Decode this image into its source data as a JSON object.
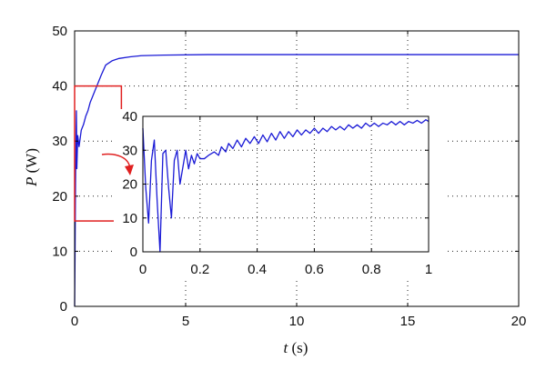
{
  "chart_data": [
    {
      "id": "main",
      "type": "line",
      "xlabel_var": "t",
      "xlabel_unit": " (s)",
      "ylabel_var": "P",
      "ylabel_unit": " (W)",
      "xlim": [
        0,
        20
      ],
      "ylim": [
        0,
        50
      ],
      "xticks": [
        0,
        5,
        10,
        15,
        20
      ],
      "yticks": [
        0,
        10,
        20,
        30,
        40,
        50
      ],
      "grid": true,
      "series": [
        {
          "color": "#1a1ad6",
          "points": [
            [
              0.0,
              0
            ],
            [
              0.02,
              10
            ],
            [
              0.04,
              22
            ],
            [
              0.06,
              30
            ],
            [
              0.08,
              35.5
            ],
            [
              0.1,
              25
            ],
            [
              0.14,
              31
            ],
            [
              0.2,
              29
            ],
            [
              0.3,
              32
            ],
            [
              0.4,
              33
            ],
            [
              0.5,
              34.5
            ],
            [
              0.6,
              35.5
            ],
            [
              0.7,
              37
            ],
            [
              0.8,
              38
            ],
            [
              0.9,
              39
            ],
            [
              1.0,
              40
            ],
            [
              1.2,
              42
            ],
            [
              1.4,
              43.8
            ],
            [
              1.7,
              44.6
            ],
            [
              2.0,
              45.0
            ],
            [
              2.5,
              45.3
            ],
            [
              3.0,
              45.5
            ],
            [
              4.0,
              45.6
            ],
            [
              6.0,
              45.7
            ],
            [
              10.0,
              45.7
            ],
            [
              15.0,
              45.7
            ],
            [
              20.0,
              45.7
            ]
          ]
        }
      ],
      "zoom_box": {
        "x0": 0,
        "x1": 1,
        "y0": 15.5,
        "y1": 40,
        "color": "#e02020"
      }
    },
    {
      "id": "inset",
      "type": "line",
      "xlim": [
        0,
        1
      ],
      "ylim": [
        0,
        40
      ],
      "xticks": [
        0,
        0.2,
        0.4,
        0.6,
        0.8,
        1
      ],
      "xtick_labels": [
        "0",
        "0.2",
        "0.4",
        "0.6",
        "0.8",
        "1"
      ],
      "yticks": [
        0,
        10,
        20,
        30,
        40
      ],
      "grid": true,
      "series": [
        {
          "color": "#1a1ad6",
          "points": [
            [
              0.0,
              36.5
            ],
            [
              0.01,
              19
            ],
            [
              0.02,
              8.5
            ],
            [
              0.03,
              27
            ],
            [
              0.04,
              33
            ],
            [
              0.05,
              15
            ],
            [
              0.06,
              0
            ],
            [
              0.07,
              29
            ],
            [
              0.08,
              30
            ],
            [
              0.09,
              19
            ],
            [
              0.1,
              10
            ],
            [
              0.11,
              27
            ],
            [
              0.12,
              30
            ],
            [
              0.13,
              20
            ],
            [
              0.14,
              25
            ],
            [
              0.15,
              30
            ],
            [
              0.16,
              24.5
            ],
            [
              0.17,
              28.5
            ],
            [
              0.18,
              26
            ],
            [
              0.19,
              29
            ],
            [
              0.2,
              27.5
            ],
            [
              0.215,
              27.5
            ],
            [
              0.23,
              28.5
            ],
            [
              0.25,
              29.5
            ],
            [
              0.265,
              28.5
            ],
            [
              0.275,
              31
            ],
            [
              0.29,
              29.5
            ],
            [
              0.3,
              32
            ],
            [
              0.315,
              30.5
            ],
            [
              0.33,
              33
            ],
            [
              0.345,
              31
            ],
            [
              0.36,
              33.5
            ],
            [
              0.375,
              32
            ],
            [
              0.39,
              34
            ],
            [
              0.405,
              32
            ],
            [
              0.42,
              34.5
            ],
            [
              0.435,
              32.5
            ],
            [
              0.45,
              35
            ],
            [
              0.465,
              33
            ],
            [
              0.48,
              35.5
            ],
            [
              0.495,
              33.5
            ],
            [
              0.51,
              35.5
            ],
            [
              0.525,
              34
            ],
            [
              0.54,
              36
            ],
            [
              0.555,
              34.5
            ],
            [
              0.57,
              36
            ],
            [
              0.585,
              35
            ],
            [
              0.6,
              36.5
            ],
            [
              0.615,
              35
            ],
            [
              0.63,
              36.5
            ],
            [
              0.645,
              35.5
            ],
            [
              0.66,
              37
            ],
            [
              0.675,
              36
            ],
            [
              0.69,
              37
            ],
            [
              0.705,
              36
            ],
            [
              0.72,
              37.5
            ],
            [
              0.735,
              36.5
            ],
            [
              0.75,
              37.5
            ],
            [
              0.765,
              36.5
            ],
            [
              0.78,
              38
            ],
            [
              0.795,
              37
            ],
            [
              0.81,
              38
            ],
            [
              0.825,
              37
            ],
            [
              0.84,
              38
            ],
            [
              0.855,
              37.5
            ],
            [
              0.87,
              38.5
            ],
            [
              0.885,
              37.5
            ],
            [
              0.9,
              38.5
            ],
            [
              0.915,
              37.5
            ],
            [
              0.93,
              38.5
            ],
            [
              0.945,
              38
            ],
            [
              0.96,
              38.8
            ],
            [
              0.975,
              38
            ],
            [
              0.99,
              39
            ],
            [
              1.0,
              38.5
            ]
          ]
        }
      ]
    }
  ],
  "colors": {
    "line": "#1a1ad6",
    "highlight": "#e02020"
  }
}
